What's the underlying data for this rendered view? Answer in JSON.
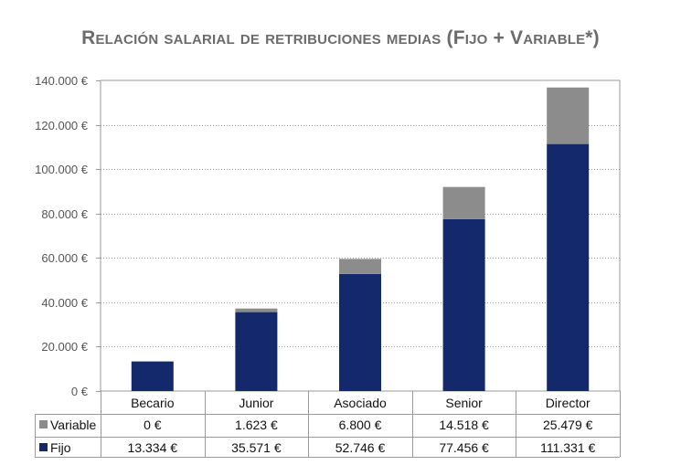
{
  "chart_data": {
    "type": "bar",
    "stacked": true,
    "title": "Relación salarial de retribuciones medias (Fijo + Variable*)",
    "categories": [
      "Becario",
      "Junior",
      "Asociado",
      "Senior",
      "Director"
    ],
    "series": [
      {
        "name": "Fijo",
        "color": "#13296b",
        "values": [
          13334,
          35571,
          52746,
          77456,
          111331
        ],
        "labels": [
          "13.334 €",
          "35.571 €",
          "52.746 €",
          "77.456 €",
          "111.331 €"
        ]
      },
      {
        "name": "Variable",
        "color": "#8c8c8c",
        "values": [
          0,
          1623,
          6800,
          14518,
          25479
        ],
        "labels": [
          "0 €",
          "1.623 €",
          "6.800 €",
          "14.518 €",
          "25.479 €"
        ]
      }
    ],
    "ylim": [
      0,
      140000
    ],
    "yticks": [
      0,
      20000,
      40000,
      60000,
      80000,
      100000,
      120000,
      140000
    ],
    "ytick_labels": [
      "0 €",
      "20.000 €",
      "40.000 €",
      "60.000 €",
      "80.000 €",
      "100.000 €",
      "120.000 €",
      "140.000 €"
    ],
    "grid": true,
    "legend": "data-table-left",
    "table_row_order": [
      "Variable",
      "Fijo"
    ]
  }
}
